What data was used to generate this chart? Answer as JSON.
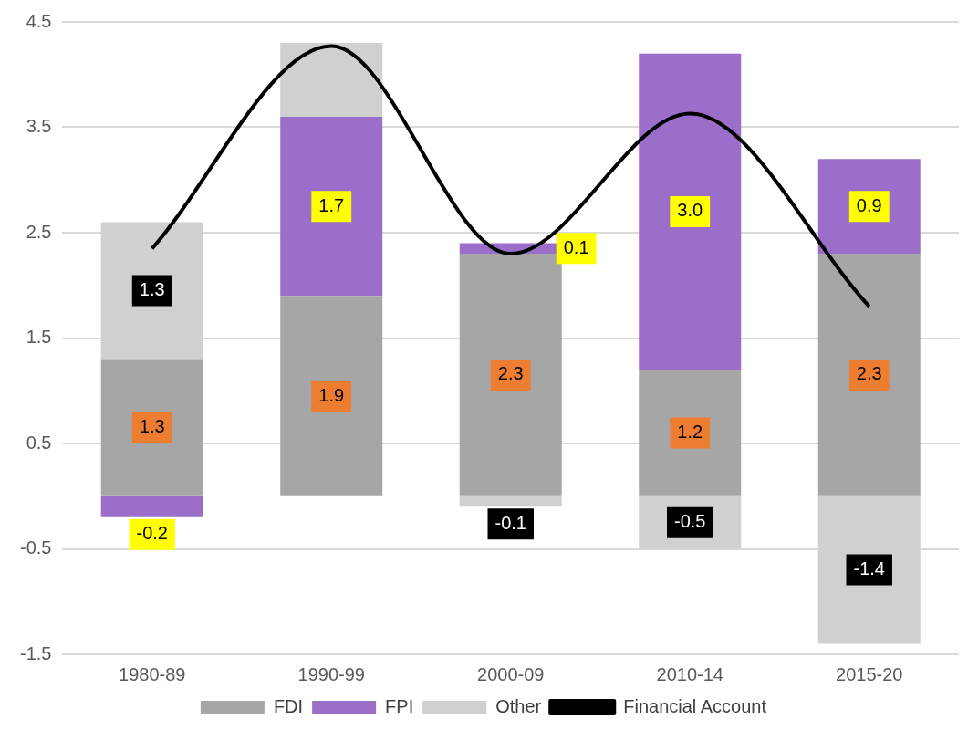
{
  "chart_data": {
    "type": "bar",
    "stacked": true,
    "categories": [
      "1980-89",
      "1990-99",
      "2000-09",
      "2010-14",
      "2015-20"
    ],
    "series": [
      {
        "name": "FDI",
        "color": "#a6a6a6",
        "values": [
          1.3,
          1.9,
          2.3,
          1.2,
          2.3
        ],
        "value_labels": [
          "1.3",
          "1.9",
          "2.3",
          "1.2",
          "2.3"
        ]
      },
      {
        "name": "FPI",
        "color": "#9b6fc9",
        "values": [
          -0.2,
          1.7,
          0.1,
          3.0,
          0.9
        ],
        "value_labels": [
          "-0.2",
          "1.7",
          "0.1",
          "3.0",
          "0.9"
        ]
      },
      {
        "name": "Other",
        "color": "#d0d0d0",
        "values": [
          1.3,
          0.7,
          -0.1,
          -0.5,
          -1.4
        ],
        "value_labels": [
          "1.3",
          null,
          "-0.1",
          "-0.5",
          "-1.4"
        ]
      },
      {
        "name": "Financial Account",
        "type": "line",
        "color": "#000000",
        "values": [
          2.35,
          4.27,
          2.3,
          3.63,
          1.8
        ]
      }
    ],
    "ylim": [
      -1.5,
      4.5
    ],
    "yticks": [
      -1.5,
      -0.5,
      0.5,
      1.5,
      2.5,
      3.5,
      4.5
    ],
    "grid": "y",
    "legend": "bottom",
    "marker": "none"
  }
}
